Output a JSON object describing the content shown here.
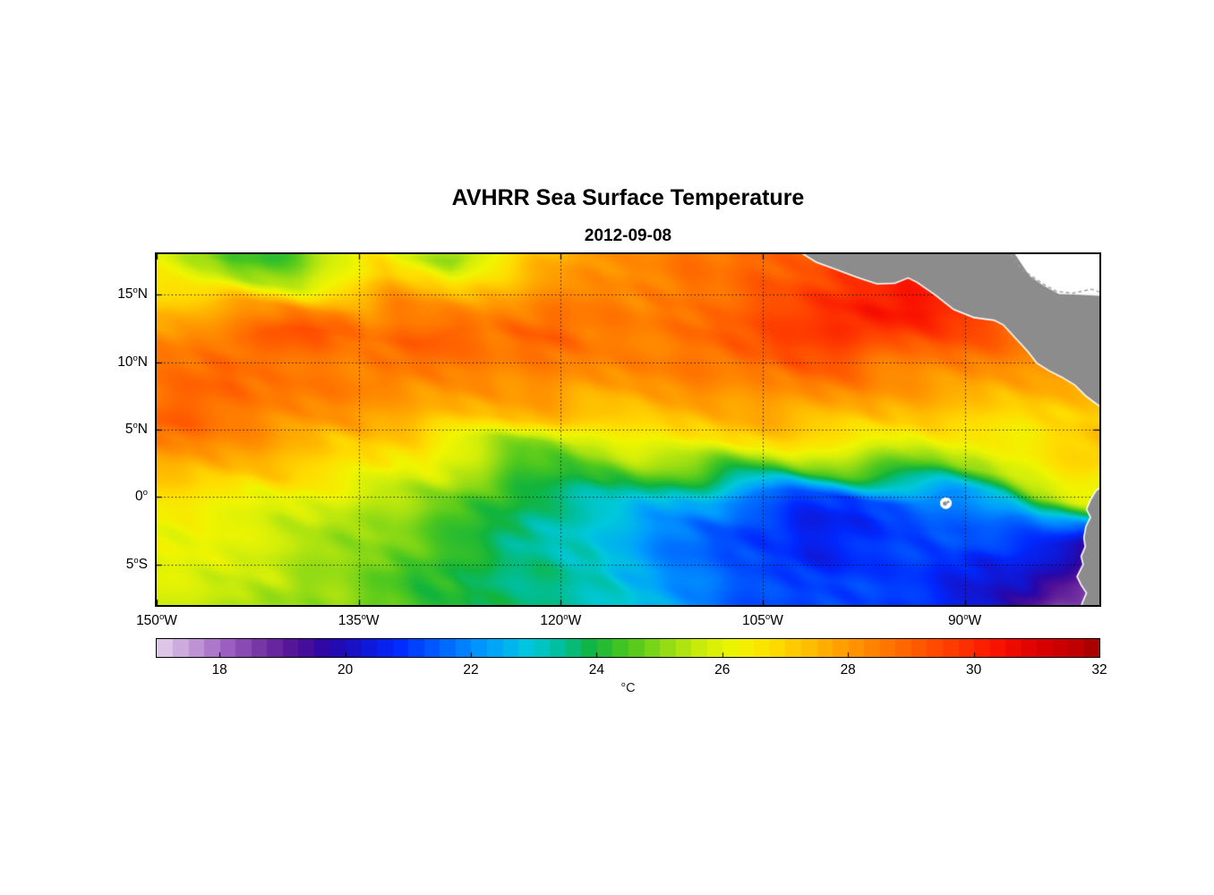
{
  "title": "AVHRR Sea Surface Temperature",
  "subtitle": "2012-09-08",
  "chart_data": {
    "type": "heatmap",
    "title": "AVHRR Sea Surface Temperature",
    "date": "2012-09-08",
    "variable": "Sea Surface Temperature",
    "units": "°C",
    "colorbar_label": "°C",
    "lon_min": -150,
    "lon_max": -80,
    "lat_min": -8,
    "lat_max": 18,
    "xticks": [
      {
        "lon": -150,
        "num": "150",
        "deg": "o",
        "dir": "W"
      },
      {
        "lon": -135,
        "num": "135",
        "deg": "o",
        "dir": "W"
      },
      {
        "lon": -120,
        "num": "120",
        "deg": "o",
        "dir": "W"
      },
      {
        "lon": -105,
        "num": "105",
        "deg": "o",
        "dir": "W"
      },
      {
        "lon": -90,
        "num": "90",
        "deg": "o",
        "dir": "W"
      }
    ],
    "yticks": [
      {
        "lat": 15,
        "num": "15",
        "deg": "o",
        "dir": "N"
      },
      {
        "lat": 10,
        "num": "10",
        "deg": "o",
        "dir": "N"
      },
      {
        "lat": 5,
        "num": "5",
        "deg": "o",
        "dir": "N"
      },
      {
        "lat": 0,
        "num": "0",
        "deg": "o",
        "dir": ""
      },
      {
        "lat": -5,
        "num": "5",
        "deg": "o",
        "dir": "S"
      }
    ],
    "gridline_lats": [
      15,
      10,
      5,
      0,
      -5
    ],
    "gridline_lons": [
      -135,
      -120,
      -105,
      -90
    ],
    "colorbar": {
      "min": 17,
      "max": 32,
      "ticks": [
        "18",
        "20",
        "22",
        "24",
        "26",
        "28",
        "30",
        "32"
      ]
    },
    "colormap_stops": [
      [
        17.0,
        "#DCC5E6"
      ],
      [
        17.5,
        "#BE93D4"
      ],
      [
        18.0,
        "#9A5FC0"
      ],
      [
        18.6,
        "#7030A0"
      ],
      [
        19.1,
        "#500F96"
      ],
      [
        19.6,
        "#2807A8"
      ],
      [
        20.1,
        "#1414CC"
      ],
      [
        20.7,
        "#0028FF"
      ],
      [
        21.4,
        "#0064FF"
      ],
      [
        22.1,
        "#009CFF"
      ],
      [
        22.8,
        "#00C8DC"
      ],
      [
        23.3,
        "#00BE9B"
      ],
      [
        23.8,
        "#12B43C"
      ],
      [
        24.4,
        "#4EC81E"
      ],
      [
        25.0,
        "#96DC14"
      ],
      [
        25.6,
        "#D2EE0A"
      ],
      [
        26.1,
        "#F0F500"
      ],
      [
        26.7,
        "#FFDC00"
      ],
      [
        27.4,
        "#FFB400"
      ],
      [
        28.1,
        "#FF8C00"
      ],
      [
        28.8,
        "#FF6400"
      ],
      [
        29.5,
        "#FF3C00"
      ],
      [
        30.2,
        "#FA1400"
      ],
      [
        30.9,
        "#DC0000"
      ],
      [
        31.5,
        "#BE0000"
      ],
      [
        32.0,
        "#960000"
      ]
    ],
    "land_color": "#8C8C8C",
    "coast_halo_color": "#FFFFFF",
    "missing_data_color": "#FFFFFF",
    "grid_lons": [
      -150,
      -147.5,
      -145,
      -142.5,
      -140,
      -137.5,
      -135,
      -132.5,
      -130,
      -127.5,
      -125,
      -122.5,
      -120,
      -117.5,
      -115,
      -112.5,
      -110,
      -107.5,
      -105,
      -102.5,
      -100,
      -97.5,
      -95,
      -92.5,
      -90,
      -87.5,
      -85,
      -82.5,
      -80
    ],
    "grid_lats": [
      18,
      16,
      14,
      12,
      10,
      8,
      6,
      4,
      2,
      0,
      -2,
      -4,
      -6,
      -8
    ],
    "sst_grid": [
      [
        26,
        25,
        24.3,
        24.2,
        24.5,
        25.2,
        25.8,
        26.5,
        25.5,
        25,
        26,
        27,
        27.5,
        28,
        28,
        28.2,
        28.5,
        28.5,
        28.8,
        29,
        29.5,
        29.5,
        29.5,
        29.5,
        29.5,
        29.5,
        29.5,
        29.5,
        29.5
      ],
      [
        26.5,
        26,
        25.5,
        25.3,
        25.5,
        26,
        26.5,
        27,
        26.8,
        26.5,
        27,
        27.5,
        28,
        28,
        28.2,
        28.3,
        28.5,
        28.5,
        28.8,
        29,
        29.5,
        29.8,
        30,
        29.8,
        29.5,
        29.5,
        29.3,
        29.2,
        29
      ],
      [
        27.5,
        27.3,
        27.5,
        27.8,
        28,
        28.2,
        28,
        28.3,
        28,
        27.8,
        28,
        28.3,
        28.5,
        28.3,
        28.2,
        28.5,
        28.5,
        28.8,
        29,
        29.3,
        29.8,
        30.2,
        30.3,
        30,
        29.8,
        29.5,
        29.3,
        29,
        29
      ],
      [
        28,
        28.3,
        28.5,
        28.5,
        29.2,
        29.2,
        28.5,
        28.8,
        29,
        28.8,
        28.5,
        28.8,
        29,
        28.5,
        28.3,
        28.5,
        28.8,
        29,
        29.2,
        29.5,
        29.5,
        29.8,
        29.5,
        29.3,
        29,
        28.8,
        28.5,
        28.5,
        28.3
      ],
      [
        28.5,
        28.5,
        28.8,
        28.5,
        28.5,
        28.5,
        28.3,
        28.5,
        28.5,
        28.3,
        28.3,
        28.5,
        28.5,
        28.3,
        28.2,
        28.3,
        28.5,
        28.8,
        28.8,
        29,
        29,
        28.8,
        28.5,
        28.5,
        28.3,
        28,
        28,
        27.8,
        27.8
      ],
      [
        28.5,
        28.8,
        28.8,
        28.5,
        28.5,
        28.3,
        28.3,
        28.3,
        28,
        28,
        27.8,
        28,
        28,
        27.8,
        27.8,
        27.8,
        28,
        28,
        28.2,
        28.3,
        28.2,
        28,
        27.8,
        27.8,
        27.8,
        27.5,
        27.5,
        27.3,
        27.3
      ],
      [
        29,
        28.8,
        28.5,
        28.3,
        28,
        28,
        27.8,
        27.5,
        27.5,
        27.3,
        27.3,
        27.3,
        27,
        27,
        27,
        27.3,
        27.3,
        27.3,
        27.5,
        27.5,
        27.3,
        27.3,
        27,
        27,
        27,
        26.8,
        26.8,
        26.8,
        27
      ],
      [
        28.3,
        28.3,
        28,
        27.8,
        27.5,
        27,
        27,
        26.8,
        26.5,
        26,
        25.5,
        24.8,
        25,
        25.5,
        26,
        26.3,
        26.5,
        26.5,
        26.5,
        26.5,
        26.3,
        26.3,
        26,
        26,
        26,
        26,
        26.3,
        26.8,
        27.3
      ],
      [
        27.5,
        27.5,
        27.3,
        27,
        27,
        26.5,
        26.5,
        26,
        26,
        25.5,
        25,
        24.3,
        24.2,
        24.3,
        24.5,
        24.5,
        24.5,
        24.3,
        24.2,
        24.2,
        24.3,
        24.3,
        24.3,
        24.5,
        24.8,
        25.3,
        25.8,
        26.3,
        26.8
      ],
      [
        26.5,
        26.5,
        26.5,
        26,
        26,
        25.8,
        25.5,
        25.2,
        25,
        24.5,
        24,
        23.8,
        23.5,
        23.3,
        23,
        22.5,
        22.3,
        22,
        21.5,
        21.2,
        21,
        21,
        21.3,
        21.8,
        22.3,
        23.3,
        24.8,
        25.3,
        25.8
      ],
      [
        26,
        26,
        26,
        25.8,
        25.5,
        25.5,
        25,
        25,
        24.5,
        24,
        23.8,
        23.3,
        23,
        23,
        22.5,
        22,
        21.5,
        21,
        20.8,
        20.5,
        20.5,
        20.5,
        20.8,
        21,
        21.3,
        21.5,
        22,
        22,
        21
      ],
      [
        26,
        26,
        25.8,
        25.5,
        25.5,
        25,
        25,
        24.8,
        24.5,
        24,
        23.5,
        23.2,
        23,
        23,
        22.5,
        22,
        21.5,
        21,
        21,
        20.5,
        20.5,
        20.8,
        21,
        21,
        21,
        20.5,
        20.5,
        20,
        19
      ],
      [
        26,
        25.8,
        25.5,
        25.5,
        25,
        25,
        25,
        24.5,
        24,
        24,
        23.5,
        23.5,
        23.2,
        23,
        22.5,
        22.2,
        21.8,
        21.5,
        21,
        21,
        21,
        21,
        21,
        20.8,
        20.5,
        20.3,
        20,
        19,
        18.3
      ],
      [
        25.8,
        25.5,
        25.5,
        25,
        25,
        25,
        24.5,
        24.5,
        24,
        24,
        23.8,
        23.5,
        23.3,
        23,
        22.8,
        22.3,
        22,
        21.5,
        21.2,
        21,
        21,
        21,
        20.8,
        20.5,
        20.3,
        20,
        19.5,
        18.5,
        17.8
      ]
    ],
    "land_polygons": {
      "central_america": [
        [
          -102.2,
          18.2
        ],
        [
          -101,
          17.45
        ],
        [
          -99.5,
          16.9
        ],
        [
          -98,
          16.35
        ],
        [
          -96.5,
          15.85
        ],
        [
          -95.2,
          15.9
        ],
        [
          -94.2,
          16.3
        ],
        [
          -93.5,
          15.95
        ],
        [
          -92.2,
          15.05
        ],
        [
          -90.8,
          13.95
        ],
        [
          -89.3,
          13.35
        ],
        [
          -87.8,
          13.15
        ],
        [
          -87.1,
          12.8
        ],
        [
          -86.5,
          12.15
        ],
        [
          -85.9,
          11.5
        ],
        [
          -85.3,
          10.85
        ],
        [
          -84.6,
          9.95
        ],
        [
          -83.7,
          9.4
        ],
        [
          -82.8,
          8.95
        ],
        [
          -81.8,
          8.35
        ],
        [
          -81.0,
          7.55
        ],
        [
          -80.4,
          7.1
        ],
        [
          -79.7,
          6.6
        ],
        [
          -79.7,
          14.9
        ],
        [
          -81.5,
          15.0
        ],
        [
          -83.0,
          15.05
        ],
        [
          -84.2,
          15.7
        ],
        [
          -85.2,
          16.4
        ],
        [
          -86.4,
          18.2
        ]
      ],
      "south_america": [
        [
          -79.7,
          0.8
        ],
        [
          -80.2,
          0.45
        ],
        [
          -80.6,
          -0.2
        ],
        [
          -80.9,
          -0.9
        ],
        [
          -80.6,
          -1.5
        ],
        [
          -80.95,
          -2.2
        ],
        [
          -81.1,
          -3.0
        ],
        [
          -81.0,
          -3.7
        ],
        [
          -81.3,
          -4.4
        ],
        [
          -81.15,
          -5.0
        ],
        [
          -81.6,
          -5.9
        ],
        [
          -81.3,
          -6.5
        ],
        [
          -80.9,
          -7.1
        ],
        [
          -81.2,
          -7.8
        ],
        [
          -81.35,
          -8.3
        ],
        [
          -79.7,
          -8.3
        ]
      ]
    },
    "caribbean_mask": [
      [
        -86.4,
        18.3
      ],
      [
        -85.2,
        16.4
      ],
      [
        -84.2,
        15.7
      ],
      [
        -83.0,
        15.05
      ],
      [
        -81.5,
        15.05
      ],
      [
        -79.6,
        15.0
      ],
      [
        -79.6,
        18.3
      ]
    ],
    "coast_dashed_line": [
      [
        -86.6,
        17.95
      ],
      [
        -85.8,
        16.9
      ],
      [
        -85.0,
        16.35
      ],
      [
        -84.2,
        15.8
      ],
      [
        -83.2,
        15.25
      ],
      [
        -82.0,
        15.1
      ],
      [
        -80.6,
        15.4
      ],
      [
        -80.0,
        15.2
      ]
    ],
    "islands": [
      {
        "name": "Galapagos",
        "lon": -91.4,
        "lat": -0.45
      }
    ]
  }
}
